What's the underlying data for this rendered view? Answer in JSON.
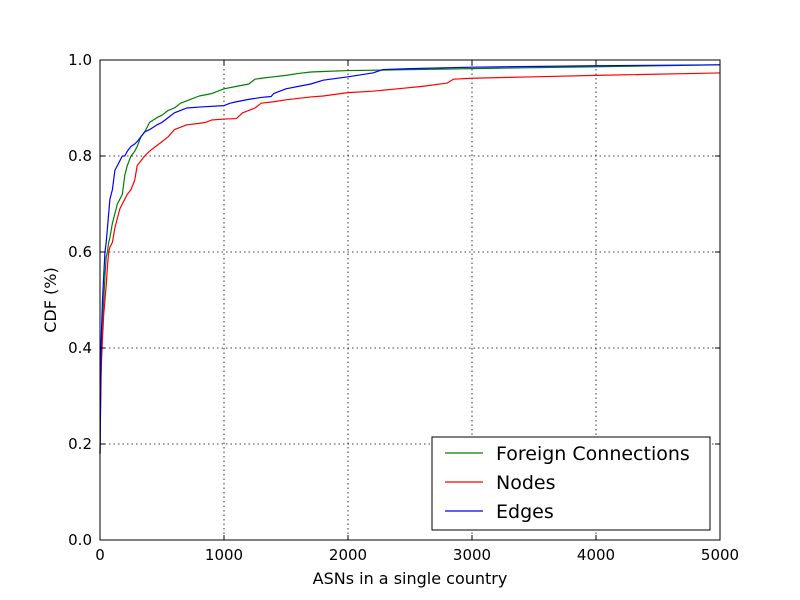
{
  "chart_data": {
    "type": "line",
    "title": "",
    "xlabel": "ASNs in a single country",
    "ylabel": "CDF (%)",
    "xlim": [
      0,
      5000
    ],
    "ylim": [
      0.0,
      1.0
    ],
    "xticks": [
      0,
      1000,
      2000,
      3000,
      4000,
      5000
    ],
    "xtick_labels": [
      "0",
      "1000",
      "2000",
      "3000",
      "4000",
      "5000"
    ],
    "yticks": [
      0.0,
      0.2,
      0.4,
      0.6,
      0.8,
      1.0
    ],
    "ytick_labels": [
      "0.0",
      "0.2",
      "0.4",
      "0.6",
      "0.8",
      "1.0"
    ],
    "grid": true,
    "legend_position": "lower-right",
    "series": [
      {
        "name": "Foreign Connections",
        "color": "#008000",
        "x": [
          0,
          5,
          10,
          20,
          30,
          40,
          50,
          60,
          70,
          80,
          100,
          120,
          140,
          160,
          180,
          200,
          220,
          250,
          280,
          300,
          330,
          360,
          400,
          430,
          460,
          500,
          550,
          600,
          650,
          700,
          800,
          900,
          1000,
          1100,
          1200,
          1250,
          1300,
          1400,
          1500,
          1600,
          1700,
          1800,
          2000,
          2300,
          3000,
          4000,
          5000
        ],
        "y": [
          0.18,
          0.3,
          0.38,
          0.45,
          0.5,
          0.55,
          0.59,
          0.6,
          0.62,
          0.63,
          0.66,
          0.68,
          0.7,
          0.71,
          0.72,
          0.76,
          0.78,
          0.8,
          0.81,
          0.82,
          0.84,
          0.85,
          0.87,
          0.875,
          0.88,
          0.885,
          0.895,
          0.9,
          0.91,
          0.915,
          0.925,
          0.93,
          0.94,
          0.945,
          0.95,
          0.96,
          0.962,
          0.965,
          0.968,
          0.972,
          0.975,
          0.976,
          0.978,
          0.979,
          0.982,
          0.986,
          0.99
        ]
      },
      {
        "name": "Nodes",
        "color": "#ff0000",
        "x": [
          0,
          5,
          10,
          20,
          30,
          40,
          50,
          60,
          70,
          80,
          100,
          120,
          140,
          160,
          180,
          200,
          220,
          250,
          280,
          300,
          330,
          360,
          400,
          450,
          500,
          550,
          600,
          700,
          800,
          850,
          900,
          1000,
          1100,
          1150,
          1200,
          1250,
          1300,
          1400,
          1500,
          1700,
          1800,
          2000,
          2200,
          2400,
          2600,
          2800,
          2850,
          3000,
          3500,
          4000,
          5000
        ],
        "y": [
          0.18,
          0.28,
          0.36,
          0.42,
          0.47,
          0.5,
          0.53,
          0.57,
          0.6,
          0.61,
          0.62,
          0.65,
          0.67,
          0.69,
          0.7,
          0.71,
          0.72,
          0.73,
          0.75,
          0.78,
          0.79,
          0.8,
          0.81,
          0.82,
          0.83,
          0.84,
          0.855,
          0.865,
          0.868,
          0.87,
          0.875,
          0.877,
          0.878,
          0.89,
          0.895,
          0.9,
          0.91,
          0.913,
          0.917,
          0.923,
          0.925,
          0.932,
          0.935,
          0.94,
          0.945,
          0.952,
          0.96,
          0.962,
          0.965,
          0.968,
          0.973
        ]
      },
      {
        "name": "Edges",
        "color": "#0000ff",
        "x": [
          0,
          5,
          10,
          20,
          30,
          40,
          50,
          60,
          70,
          80,
          100,
          120,
          140,
          160,
          180,
          200,
          220,
          250,
          280,
          300,
          330,
          360,
          400,
          430,
          460,
          500,
          550,
          600,
          650,
          700,
          800,
          1000,
          1050,
          1100,
          1200,
          1300,
          1380,
          1400,
          1500,
          1600,
          1700,
          1800,
          2000,
          2200,
          2280,
          2500,
          3000,
          4000,
          5000
        ],
        "y": [
          0.18,
          0.32,
          0.42,
          0.5,
          0.55,
          0.6,
          0.62,
          0.65,
          0.68,
          0.71,
          0.73,
          0.77,
          0.78,
          0.79,
          0.8,
          0.8,
          0.81,
          0.82,
          0.825,
          0.83,
          0.84,
          0.85,
          0.855,
          0.86,
          0.865,
          0.87,
          0.88,
          0.89,
          0.895,
          0.9,
          0.902,
          0.905,
          0.91,
          0.913,
          0.918,
          0.922,
          0.924,
          0.93,
          0.94,
          0.945,
          0.95,
          0.958,
          0.965,
          0.973,
          0.98,
          0.982,
          0.985,
          0.988,
          0.99
        ]
      }
    ]
  }
}
